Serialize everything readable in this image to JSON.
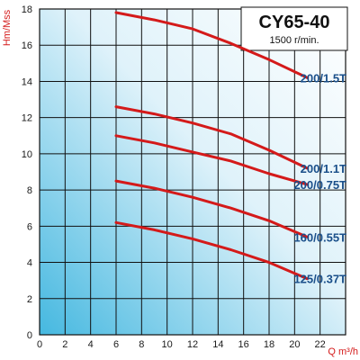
{
  "chart_data": {
    "type": "line",
    "title": "CY65-40",
    "subtitle": "1500 r/min.",
    "xlabel": "Q m³/h",
    "ylabel": "Hm/Mss",
    "xlim": [
      0,
      24
    ],
    "ylim": [
      0,
      18
    ],
    "x_ticks": [
      "0",
      "2",
      "4",
      "6",
      "8",
      "10",
      "12",
      "14",
      "16",
      "18",
      "20",
      "22"
    ],
    "y_ticks": [
      "0",
      "2",
      "4",
      "6",
      "8",
      "10",
      "12",
      "14",
      "16",
      "18"
    ],
    "grid": true,
    "legend": "none",
    "colors": {
      "curve": "#d41a1a",
      "label": "#1a4f8a",
      "grid": "#111111",
      "bg_top": "#ffffff",
      "bg_bottom": "#45b8e0"
    },
    "series": [
      {
        "name": "200/1.5T",
        "x": [
          6,
          9,
          12,
          15,
          18,
          21
        ],
        "y": [
          17.8,
          17.4,
          16.9,
          16.1,
          15.2,
          14.2
        ]
      },
      {
        "name": "200/1.1T",
        "x": [
          6,
          9,
          12,
          15,
          18,
          21
        ],
        "y": [
          12.6,
          12.2,
          11.7,
          11.1,
          10.2,
          9.2
        ]
      },
      {
        "name": "200/0.75T",
        "x": [
          6,
          9,
          12,
          15,
          18,
          21
        ],
        "y": [
          11.0,
          10.6,
          10.1,
          9.6,
          8.9,
          8.3
        ]
      },
      {
        "name": "160/0.55T",
        "x": [
          6,
          9,
          12,
          15,
          18,
          21
        ],
        "y": [
          8.5,
          8.1,
          7.6,
          7.0,
          6.3,
          5.4
        ]
      },
      {
        "name": "125/0.37T",
        "x": [
          6,
          9,
          12,
          15,
          18,
          21
        ],
        "y": [
          6.2,
          5.8,
          5.3,
          4.7,
          4.0,
          3.1
        ]
      }
    ]
  }
}
